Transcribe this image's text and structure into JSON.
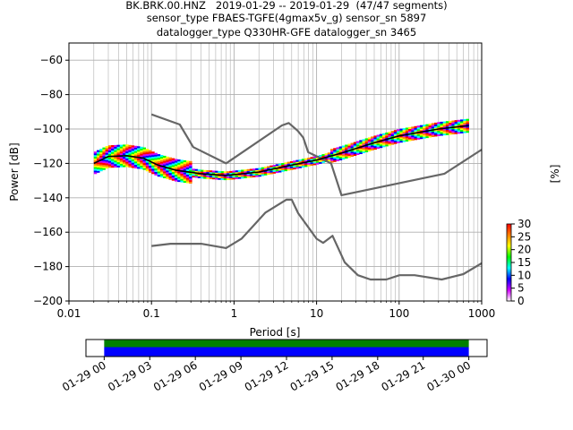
{
  "header": {
    "line1": "BK.BRK.00.HNZ   2019-01-29 -- 2019-01-29  (47/47 segments)",
    "line2": "sensor_type FBAES-TGFE(4gmax5v_g) sensor_sn 5897",
    "line3": "datalogger_type Q330HR-GFE datalogger_sn 3465"
  },
  "chart_data": [
    {
      "type": "heatmap",
      "xlabel": "Period [s]",
      "ylabel": "Power [dB]",
      "x_scale": "log",
      "xlim": [
        0.01,
        1000
      ],
      "ylim": [
        -200,
        -50
      ],
      "grid": true,
      "x_ticks": [
        {
          "v": 0.01,
          "label": "0.01"
        },
        {
          "v": 0.1,
          "label": "0.1"
        },
        {
          "v": 1,
          "label": "1"
        },
        {
          "v": 10,
          "label": "10"
        },
        {
          "v": 100,
          "label": "100"
        },
        {
          "v": 1000,
          "label": "1000"
        }
      ],
      "y_ticks": [
        {
          "v": -60,
          "label": "−60"
        },
        {
          "v": -80,
          "label": "−80"
        },
        {
          "v": -100,
          "label": "−100"
        },
        {
          "v": -120,
          "label": "−120"
        },
        {
          "v": -140,
          "label": "−140"
        },
        {
          "v": -160,
          "label": "−160"
        },
        {
          "v": -180,
          "label": "−180"
        },
        {
          "v": -200,
          "label": "−200"
        }
      ],
      "series": [
        {
          "kind": "high-noise-model",
          "color": "#666666",
          "points": [
            [
              0.1,
              -91.5
            ],
            [
              0.22,
              -97.4
            ],
            [
              0.32,
              -110.5
            ],
            [
              0.8,
              -120
            ],
            [
              3.8,
              -97.9
            ],
            [
              4.6,
              -96.5
            ],
            [
              5.9,
              -101
            ],
            [
              6.9,
              -105
            ],
            [
              7.9,
              -113.5
            ],
            [
              15,
              -120
            ],
            [
              20,
              -138.5
            ],
            [
              354,
              -126
            ],
            [
              1000,
              -112
            ]
          ]
        },
        {
          "kind": "low-noise-model",
          "color": "#666666",
          "points": [
            [
              0.1,
              -168
            ],
            [
              0.17,
              -166.7
            ],
            [
              0.4,
              -166.7
            ],
            [
              0.8,
              -169.2
            ],
            [
              1.24,
              -163.7
            ],
            [
              2.4,
              -148.6
            ],
            [
              4.3,
              -141.1
            ],
            [
              5,
              -141.1
            ],
            [
              6,
              -149
            ],
            [
              10,
              -163.8
            ],
            [
              12,
              -166.2
            ],
            [
              15.6,
              -162.1
            ],
            [
              21.9,
              -177.5
            ],
            [
              31.6,
              -185
            ],
            [
              45,
              -187.5
            ],
            [
              70,
              -187.5
            ],
            [
              101,
              -185
            ],
            [
              154,
              -185
            ],
            [
              328,
              -187.5
            ],
            [
              600,
              -184.4
            ],
            [
              1000,
              -178
            ]
          ]
        },
        {
          "kind": "mode",
          "color": "#000000",
          "points": [
            [
              0.02,
              -120
            ],
            [
              0.03,
              -116
            ],
            [
              0.05,
              -115.5
            ],
            [
              0.08,
              -117
            ],
            [
              0.12,
              -121
            ],
            [
              0.2,
              -124
            ],
            [
              0.4,
              -126
            ],
            [
              0.8,
              -127
            ],
            [
              2,
              -125
            ],
            [
              5,
              -121
            ],
            [
              10,
              -118
            ],
            [
              20,
              -114
            ],
            [
              50,
              -108
            ],
            [
              100,
              -104
            ],
            [
              300,
              -100
            ],
            [
              700,
              -98
            ]
          ]
        }
      ],
      "colorbar": {
        "label": "[%]",
        "range": [
          0,
          30
        ],
        "ticks": [
          {
            "v": 0,
            "label": "0"
          },
          {
            "v": 5,
            "label": "5"
          },
          {
            "v": 10,
            "label": "10"
          },
          {
            "v": 15,
            "label": "15"
          },
          {
            "v": 20,
            "label": "20"
          },
          {
            "v": 25,
            "label": "25"
          },
          {
            "v": 30,
            "label": "30"
          }
        ],
        "colors": [
          "#ffffff",
          "#d000ff",
          "#0000ff",
          "#00ffff",
          "#00ff00",
          "#ffff00",
          "#ff8000",
          "#ff0000"
        ]
      }
    },
    {
      "type": "timeline",
      "ticks": [
        {
          "v": 0,
          "label": "01-29 00"
        },
        {
          "v": 3,
          "label": "01-29 03"
        },
        {
          "v": 6,
          "label": "01-29 06"
        },
        {
          "v": 9,
          "label": "01-29 09"
        },
        {
          "v": 12,
          "label": "01-29 12"
        },
        {
          "v": 15,
          "label": "01-29 15"
        },
        {
          "v": 18,
          "label": "01-29 18"
        },
        {
          "v": 21,
          "label": "01-29 21"
        },
        {
          "v": 24,
          "label": "01-30 00"
        }
      ],
      "xlim": [
        -1.2,
        25.2
      ],
      "data_coverage": [
        0,
        24
      ],
      "colors": {
        "coverage": "#008000",
        "used": "#0000ff"
      }
    }
  ]
}
